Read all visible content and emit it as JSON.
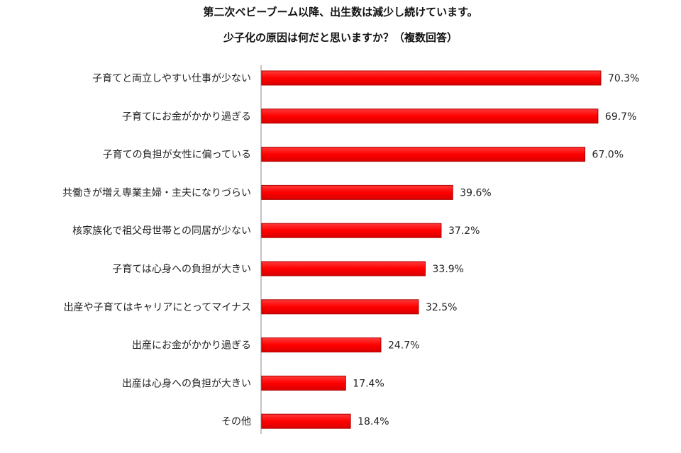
{
  "chart_data": {
    "type": "bar",
    "orientation": "horizontal",
    "title": "第二次ベビーブーム以降、出生数は減少し続けています。",
    "subtitle": "少子化の原因は何だと思いますか？（複数回答）",
    "categories": [
      "子育てと両立しやすい仕事が少ない",
      "子育てにお金がかかり過ぎる",
      "子育ての負担が女性に偏っている",
      "共働きが増え専業主婦・主夫になりづらい",
      "核家族化で祖父母世帯との同居が少ない",
      "子育ては心身への負担が大きい",
      "出産や子育てはキャリアにとってマイナス",
      "出産にお金がかかり過ぎる",
      "出産は心身への負担が大きい",
      "その他"
    ],
    "values": [
      70.3,
      69.7,
      67.0,
      39.6,
      37.2,
      33.9,
      32.5,
      24.7,
      17.4,
      18.4
    ],
    "value_labels": [
      "70.3%",
      "69.7%",
      "67.0%",
      "39.6%",
      "37.2%",
      "33.9%",
      "32.5%",
      "24.7%",
      "17.4%",
      "18.4%"
    ],
    "unit": "%",
    "bar_color": "#ff0000",
    "bar_edge_color": "#b00000",
    "grid": false,
    "legend": "none"
  }
}
